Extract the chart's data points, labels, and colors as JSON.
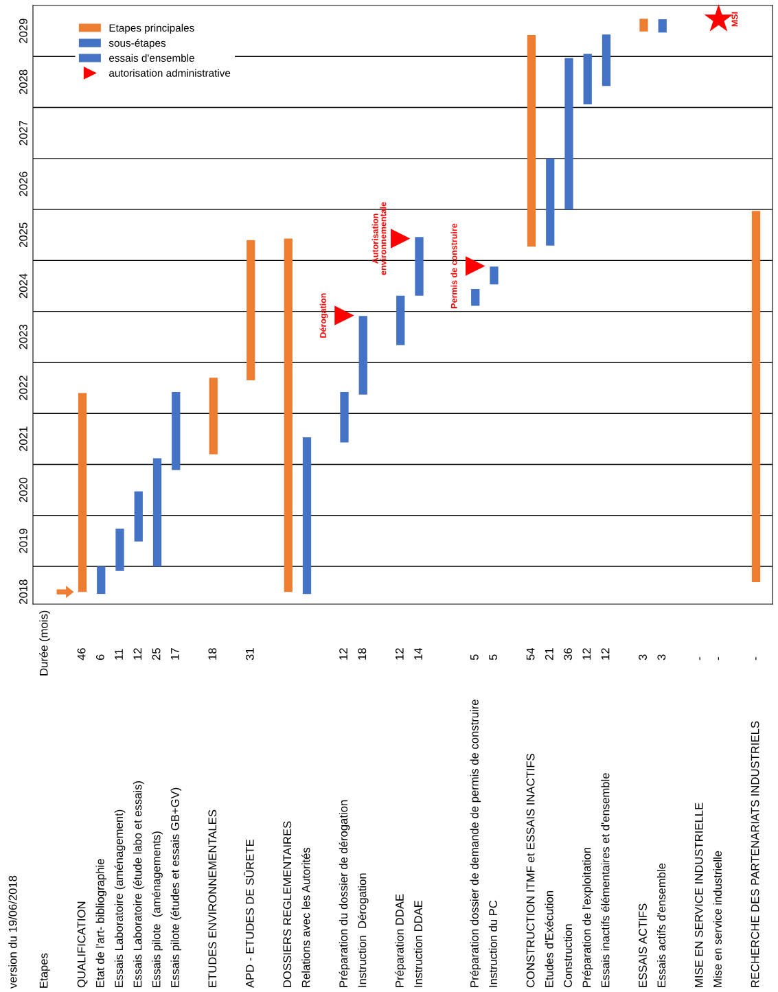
{
  "chart_data": {
    "type": "bar",
    "legend": "top left",
    "grid": "y",
    "categories": [
      "QUALIFICATION",
      "Etat de l'art- bibliographie",
      "Essais Laboratoire (aménagement)",
      "Essais Laboratoire (étude labo et essais)",
      "Essais pilote  (aménagements)",
      "Essais pilote (études et essais GB+GV)",
      null,
      "ETUDES ENVIRONNEMENTALES",
      null,
      "APD - ETUDES DE SÛRETE",
      null,
      "DOSSIERS REGLEMENTAIRES",
      "Relations avec les Autorités",
      null,
      "Préparation du dossier de dérogation",
      "Instruction  Dérogation",
      null,
      "Préparation DDAE",
      "Instruction DDAE",
      null,
      null,
      "Préparation dossier de demande de permis de construire",
      "Instruction du PC",
      null,
      "CONSTRUCTION ITMF et ESSAIS INACTIFS",
      "Etudes d'Exécution",
      "Construction",
      "Préparation de l'exploitation",
      "Essais inactifs élémentaires et d'ensemble",
      null,
      "ESSAIS ACTIFS",
      "Essais actifs d'ensemble",
      null,
      "MISE EN SERVICE INDUSTRIELLE",
      "Mise en service industrielle",
      null,
      "RECHERCHE DES PARTENARIATS INDUSTRIELS"
    ],
    "ylim": [
      2018.26,
      2030
    ],
    "yticks": [
      {
        "value": 2018.5,
        "label": "2018"
      },
      {
        "value": 2019,
        "label": null
      },
      {
        "value": 2019.5,
        "label": "2019"
      },
      {
        "value": 2020,
        "label": null
      },
      {
        "value": 2020.5,
        "label": "2020"
      },
      {
        "value": 2021,
        "label": null
      },
      {
        "value": 2021.5,
        "label": "2021"
      },
      {
        "value": 2022,
        "label": null
      },
      {
        "value": 2022.5,
        "label": "2022"
      },
      {
        "value": 2023,
        "label": null
      },
      {
        "value": 2023.5,
        "label": "2023"
      },
      {
        "value": 2024,
        "label": null
      },
      {
        "value": 2024.5,
        "label": "2024"
      },
      {
        "value": 2025,
        "label": null
      },
      {
        "value": 2025.5,
        "label": "2025"
      },
      {
        "value": 2026,
        "label": null
      },
      {
        "value": 2026.5,
        "label": "2026"
      },
      {
        "value": 2027,
        "label": null
      },
      {
        "value": 2027.5,
        "label": "2027"
      },
      {
        "value": 2028,
        "label": null
      },
      {
        "value": 2028.5,
        "label": "2028"
      },
      {
        "value": 2029,
        "label": null
      },
      {
        "value": 2029.5,
        "label": "2029"
      }
    ],
    "series": [
      {
        "name": "Etapes principales",
        "color": "#ed7d31",
        "values": [
          3.9,
          null,
          null,
          null,
          null,
          null,
          null,
          1.5,
          null,
          2.75,
          null,
          6.93,
          null,
          null,
          null,
          null,
          null,
          null,
          null,
          null,
          null,
          null,
          null,
          null,
          4.15,
          null,
          null,
          null,
          null,
          null,
          0.25,
          null,
          null,
          null,
          null,
          null,
          7.28
        ],
        "base": [
          2018.5,
          null,
          null,
          null,
          null,
          null,
          null,
          2021.2,
          null,
          2022.65,
          null,
          2018.5,
          null,
          null,
          null,
          null,
          null,
          null,
          null,
          null,
          null,
          null,
          null,
          null,
          2025.27,
          null,
          null,
          null,
          null,
          null,
          2029.49,
          null,
          null,
          null,
          null,
          null,
          2018.69
        ]
      },
      {
        "name": "sous-étapes",
        "color": "#4472c4",
        "values": [
          null,
          0.54,
          0.83,
          0.98,
          2.12,
          1.53,
          null,
          null,
          null,
          null,
          null,
          null,
          3.07,
          null,
          0.99,
          1.54,
          null,
          0.97,
          1.15,
          null,
          null,
          0.33,
          0.35,
          null,
          null,
          1.71,
          2.97,
          0.99,
          null,
          null,
          null,
          null,
          null,
          null,
          null,
          null,
          null
        ],
        "base": [
          null,
          2018.46,
          2018.91,
          2019.49,
          2019.0,
          2020.89,
          null,
          null,
          null,
          null,
          null,
          null,
          2018.46,
          null,
          2021.43,
          2022.37,
          null,
          2023.34,
          2024.31,
          null,
          null,
          2024.11,
          2024.53,
          null,
          null,
          2025.29,
          2026.0,
          2028.06,
          null,
          null,
          null,
          null,
          null,
          null,
          null,
          null,
          null
        ]
      },
      {
        "name": "essais d'ensemble",
        "color": "#4472c4",
        "values": [
          null,
          null,
          null,
          null,
          null,
          null,
          null,
          null,
          null,
          null,
          null,
          null,
          null,
          null,
          null,
          null,
          null,
          null,
          null,
          null,
          null,
          null,
          null,
          null,
          null,
          null,
          null,
          null,
          1.01,
          null,
          null,
          0.26,
          null,
          null,
          null,
          null,
          null
        ],
        "base": [
          null,
          null,
          null,
          null,
          null,
          null,
          null,
          null,
          null,
          null,
          null,
          null,
          null,
          null,
          null,
          null,
          null,
          null,
          null,
          null,
          null,
          null,
          null,
          null,
          null,
          null,
          null,
          null,
          2028.42,
          null,
          null,
          2029.47,
          null,
          null,
          null,
          null,
          null
        ]
      },
      {
        "name": "autorisation administrative",
        "type": "scatter",
        "marker": "triangle",
        "color": "#ff0000",
        "x": [
          "Préparation du dossier de dérogation",
          "Préparation DDAE",
          "Préparation dossier de demande de permis de construire"
        ],
        "values": [
          2023.92,
          2025.43,
          2024.89
        ]
      },
      {
        "type": "scatter",
        "marker": "star",
        "color": "#ff0000",
        "x": [
          "Mise en service industrielle"
        ],
        "values": [
          2029.73
        ]
      }
    ],
    "annotations": [
      "version du 19/06/2018",
      "Etapes",
      "Durée (mois)",
      "46",
      "6",
      "11",
      "12",
      "25",
      "17",
      "18",
      "31",
      "12",
      "18",
      "12",
      "14",
      "5",
      "5",
      "54",
      "21",
      "36",
      "12",
      "12",
      "3",
      "3",
      "-",
      "-",
      "-",
      {
        "text": "Dérogation",
        "x": "Préparation du dossier de dérogation",
        "y": 2023.92
      },
      {
        "text": "Autorisation\nenvironnementale",
        "x": "Préparation DDAE",
        "y": 2025.43
      },
      {
        "text": "Permis de construire",
        "x": "Préparation dossier de demande de permis de construire",
        "y": 2024.89
      },
      {
        "text": "MSI",
        "x": "Mise en service industrielle",
        "y": 2029.73
      }
    ]
  }
}
